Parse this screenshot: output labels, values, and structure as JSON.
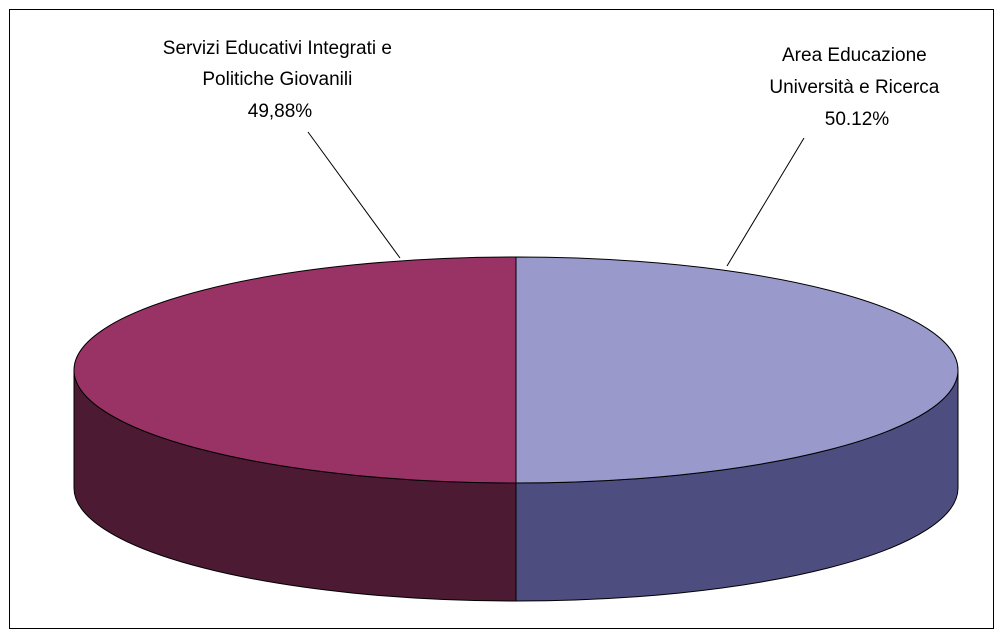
{
  "chart_data": {
    "type": "pie",
    "style": "3d",
    "slices": [
      {
        "label_lines": [
          "Servizi Educativi Integrati e",
          "Politiche Giovanili"
        ],
        "value_label": "49,88%",
        "value": 49.88,
        "color": "#993366",
        "side_color": "#4d1a33"
      },
      {
        "label_lines": [
          "Area Educazione",
          "Università e Ricerca"
        ],
        "value_label": "50.12%",
        "value": 50.12,
        "color": "#9999cc",
        "side_color": "#4d4d80"
      }
    ],
    "legend": "none",
    "border": true
  }
}
